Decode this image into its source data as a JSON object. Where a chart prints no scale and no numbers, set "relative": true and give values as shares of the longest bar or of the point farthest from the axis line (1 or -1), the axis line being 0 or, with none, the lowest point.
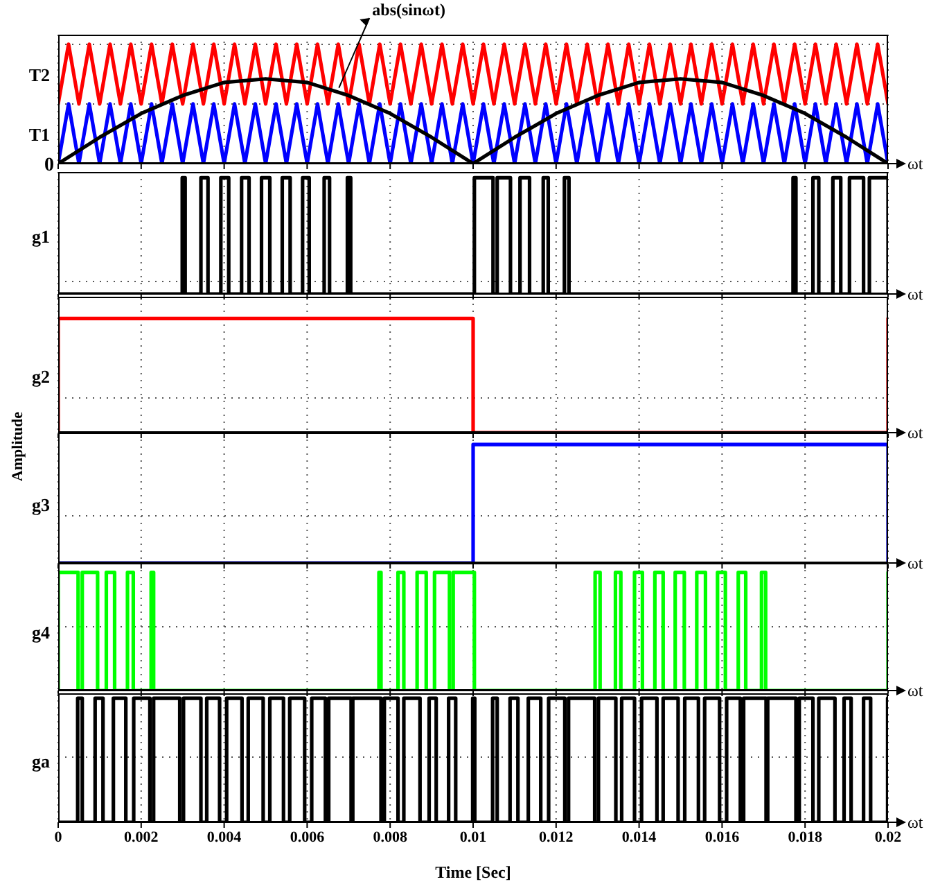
{
  "chart_data": [
    {
      "type": "line",
      "relative": true,
      "grid": true,
      "tick_labels": false,
      "xlim": [
        0,
        0.02
      ],
      "xticks": [
        0,
        0.002,
        0.004,
        0.006,
        0.008,
        0.01,
        0.012,
        0.014,
        0.016,
        0.018,
        0.02
      ],
      "xlabel": "ωt",
      "x": [
        0,
        0.00025,
        0.0005,
        0.00075,
        0.001,
        0.00125,
        0.0015,
        0.00175,
        0.002,
        0.00225,
        0.0025,
        0.00275,
        0.003,
        0.00325,
        0.0035,
        0.00375,
        0.004,
        0.00425,
        0.0045,
        0.00475,
        0.005,
        0.00525,
        0.0055,
        0.00575,
        0.006,
        0.00625,
        0.0065,
        0.00675,
        0.007,
        0.00725,
        0.0075,
        0.00775,
        0.008,
        0.00825,
        0.0085,
        0.00875,
        0.009,
        0.00925,
        0.0095,
        0.00975,
        0.01,
        0.01025,
        0.0105,
        0.01075,
        0.011,
        0.01125,
        0.0115,
        0.01175,
        0.012,
        0.01225,
        0.0125,
        0.01275,
        0.013,
        0.01325,
        0.0135,
        0.01375,
        0.014,
        0.01425,
        0.0145,
        0.01475,
        0.015,
        0.01525,
        0.0155,
        0.01575,
        0.016,
        0.01625,
        0.0165,
        0.01675,
        0.017,
        0.01725,
        0.0175,
        0.01775,
        0.018,
        0.01825,
        0.0185,
        0.01875,
        0.019,
        0.01925,
        0.0195,
        0.01975,
        0.02
      ],
      "series": [
        {
          "name": "T2",
          "color": "#ff0000",
          "values": [
            0.5,
            1,
            0.5,
            1,
            0.5,
            1,
            0.5,
            1,
            0.5,
            1,
            0.5,
            1,
            0.5,
            1,
            0.5,
            1,
            0.5,
            1,
            0.5,
            1,
            0.5,
            1,
            0.5,
            1,
            0.5,
            1,
            0.5,
            1,
            0.5,
            1,
            0.5,
            1,
            0.5,
            1,
            0.5,
            1,
            0.5,
            1,
            0.5,
            1,
            0.5,
            1,
            0.5,
            1,
            0.5,
            1,
            0.5,
            1,
            0.5,
            1,
            0.5,
            1,
            0.5,
            1,
            0.5,
            1,
            0.5,
            1,
            0.5,
            1,
            0.5,
            1,
            0.5,
            1,
            0.5,
            1,
            0.5,
            1,
            0.5,
            1,
            0.5,
            1,
            0.5,
            1,
            0.5,
            1,
            0.5,
            1,
            0.5,
            1,
            0.5
          ]
        },
        {
          "name": "T1",
          "color": "#0000ff",
          "values": [
            0,
            0.5,
            0,
            0.5,
            0,
            0.5,
            0,
            0.5,
            0,
            0.5,
            0,
            0.5,
            0,
            0.5,
            0,
            0.5,
            0,
            0.5,
            0,
            0.5,
            0,
            0.5,
            0,
            0.5,
            0,
            0.5,
            0,
            0.5,
            0,
            0.5,
            0,
            0.5,
            0,
            0.5,
            0,
            0.5,
            0,
            0.5,
            0,
            0.5,
            0,
            0.5,
            0,
            0.5,
            0,
            0.5,
            0,
            0.5,
            0,
            0.5,
            0,
            0.5,
            0,
            0.5,
            0,
            0.5,
            0,
            0.5,
            0,
            0.5,
            0,
            0.5,
            0,
            0.5,
            0,
            0.5,
            0,
            0.5,
            0,
            0.5,
            0,
            0.5,
            0,
            0.5,
            0,
            0.5,
            0,
            0.5,
            0,
            0.5,
            0
          ]
        },
        {
          "color": "#000000",
          "x": [
            0,
            0.001,
            0.002,
            0.003,
            0.004,
            0.005,
            0.006,
            0.007,
            0.008,
            0.009,
            0.01,
            0.011,
            0.012,
            0.013,
            0.014,
            0.015,
            0.016,
            0.017,
            0.018,
            0.019,
            0.02
          ],
          "values": [
            0,
            0.22,
            0.42,
            0.57,
            0.68,
            0.71,
            0.68,
            0.57,
            0.42,
            0.22,
            0,
            0.22,
            0.42,
            0.57,
            0.68,
            0.71,
            0.68,
            0.57,
            0.42,
            0.22,
            0
          ]
        }
      ],
      "annotations": [
        {
          "text": "abs(sinωt)",
          "x": 0.0067,
          "y": 0.6
        },
        "0"
      ]
    },
    {
      "type": "step",
      "relative": true,
      "grid": true,
      "tick_labels": false,
      "xlim": [
        0,
        0.02
      ],
      "xticks": [
        0,
        0.002,
        0.004,
        0.006,
        0.008,
        0.01,
        0.012,
        0.014,
        0.016,
        0.018,
        0.02
      ],
      "xlabel": "ωt",
      "series": [
        {
          "name": "g1",
          "color": "#000000",
          "x": [
            0,
            0.00299,
            0.00306,
            0.00344,
            0.00361,
            0.00392,
            0.00411,
            0.00442,
            0.0046,
            0.0049,
            0.0051,
            0.0054,
            0.00559,
            0.00589,
            0.00605,
            0.00641,
            0.00654,
            0.00697,
            0.00705,
            0.01003,
            0.01048,
            0.01058,
            0.0109,
            0.01113,
            0.01136,
            0.01169,
            0.01181,
            0.0122,
            0.01231,
            0.01771,
            0.01778,
            0.01819,
            0.01833,
            0.01867,
            0.01886,
            0.01907,
            0.01941,
            0.01955,
            0.02
          ],
          "values": [
            0,
            1,
            0,
            1,
            0,
            1,
            0,
            1,
            0,
            1,
            0,
            1,
            0,
            1,
            0,
            1,
            0,
            1,
            0,
            1,
            0,
            1,
            0,
            1,
            0,
            1,
            0,
            1,
            0,
            1,
            0,
            1,
            0,
            1,
            0,
            1,
            0,
            1,
            0
          ]
        }
      ]
    },
    {
      "type": "step",
      "relative": true,
      "grid": true,
      "tick_labels": false,
      "xlim": [
        0,
        0.02
      ],
      "xticks": [
        0,
        0.002,
        0.004,
        0.006,
        0.008,
        0.01,
        0.012,
        0.014,
        0.016,
        0.018,
        0.02
      ],
      "xlabel": "ωt",
      "series": [
        {
          "name": "g2",
          "color": "#ff0000",
          "x": [
            0,
            0,
            0.01,
            0.02
          ],
          "values": [
            0,
            1,
            0,
            1
          ]
        }
      ]
    },
    {
      "type": "step",
      "relative": true,
      "grid": true,
      "tick_labels": false,
      "xlim": [
        0,
        0.02
      ],
      "xticks": [
        0,
        0.002,
        0.004,
        0.006,
        0.008,
        0.01,
        0.012,
        0.014,
        0.016,
        0.018,
        0.02
      ],
      "xlabel": "ωt",
      "ylabel": "Amplitude",
      "series": [
        {
          "name": "g3",
          "color": "#0000ff",
          "x": [
            0,
            0.01,
            0.02
          ],
          "values": [
            0,
            1,
            0
          ]
        }
      ]
    },
    {
      "type": "step",
      "relative": true,
      "grid": true,
      "tick_labels": false,
      "xlim": [
        0,
        0.02
      ],
      "xticks": [
        0,
        0.002,
        0.004,
        0.006,
        0.008,
        0.01,
        0.012,
        0.014,
        0.016,
        0.018,
        0.02
      ],
      "xlabel": "ωt",
      "series": [
        {
          "name": "g4",
          "color": "#00ff00",
          "x": [
            0,
            0,
            0.00048,
            0.00058,
            0.00095,
            0.00116,
            0.00136,
            0.00167,
            0.00181,
            0.00224,
            0.0023,
            0.00773,
            0.00778,
            0.00819,
            0.00833,
            0.00865,
            0.00887,
            0.00907,
            0.00943,
            0.00952,
            0.01003,
            0.01294,
            0.01306,
            0.01343,
            0.01356,
            0.01389,
            0.01408,
            0.01438,
            0.01458,
            0.01487,
            0.01509,
            0.01539,
            0.0156,
            0.01589,
            0.01608,
            0.01639,
            0.01657,
            0.01695,
            0.01705,
            0.02
          ],
          "values": [
            0,
            1,
            0,
            1,
            0,
            1,
            0,
            1,
            0,
            1,
            0,
            1,
            0,
            1,
            0,
            1,
            0,
            1,
            0,
            1,
            0,
            1,
            0,
            1,
            0,
            1,
            0,
            1,
            0,
            1,
            0,
            1,
            0,
            1,
            0,
            1,
            0,
            1,
            0,
            1
          ]
        }
      ]
    },
    {
      "type": "step",
      "relative": true,
      "grid": true,
      "tick_labels": "x",
      "xlim": [
        0,
        0.02
      ],
      "xticks": [
        0,
        0.002,
        0.004,
        0.006,
        0.008,
        0.01,
        0.012,
        0.014,
        0.016,
        0.018,
        0.02
      ],
      "xlabel": "Time [Sec]",
      "annotations": [
        "ωt"
      ],
      "series": [
        {
          "name": "ga",
          "color": "#000000",
          "x": [
            0,
            0.00047,
            0.00058,
            0.00089,
            0.00108,
            0.00133,
            0.00163,
            0.00182,
            0.00221,
            0.0023,
            0.00293,
            0.00302,
            0.00344,
            0.00358,
            0.00389,
            0.00406,
            0.00443,
            0.00458,
            0.00494,
            0.0051,
            0.00543,
            0.00558,
            0.00594,
            0.00611,
            0.00644,
            0.00652,
            0.00706,
            0.0071,
            0.00778,
            0.00786,
            0.00819,
            0.00833,
            0.00872,
            0.00894,
            0.00911,
            0.00941,
            0.00958,
            0.00999,
            0.01004,
            0.01047,
            0.01058,
            0.01089,
            0.01108,
            0.01133,
            0.01163,
            0.01182,
            0.01221,
            0.0123,
            0.01293,
            0.01302,
            0.01344,
            0.01358,
            0.01389,
            0.01406,
            0.01443,
            0.01458,
            0.01494,
            0.0151,
            0.01543,
            0.01558,
            0.01594,
            0.01611,
            0.01644,
            0.01652,
            0.01706,
            0.0171,
            0.01778,
            0.01786,
            0.01819,
            0.01833,
            0.01872,
            0.01894,
            0.01911,
            0.01941,
            0.01958,
            0.01999,
            0.02
          ],
          "values": [
            0,
            1,
            0,
            1,
            0,
            1,
            0,
            1,
            0,
            1,
            0,
            1,
            0,
            1,
            0,
            1,
            0,
            1,
            0,
            1,
            0,
            1,
            0,
            1,
            0,
            1,
            0,
            1,
            0,
            1,
            0,
            1,
            0,
            1,
            0,
            1,
            0,
            1,
            0,
            1,
            0,
            1,
            0,
            1,
            0,
            1,
            0,
            1,
            0,
            1,
            0,
            1,
            0,
            1,
            0,
            1,
            0,
            1,
            0,
            1,
            0,
            1,
            0,
            1,
            0,
            1,
            0,
            1,
            0,
            1,
            0,
            1,
            0,
            1,
            0,
            1,
            0
          ]
        }
      ]
    }
  ]
}
